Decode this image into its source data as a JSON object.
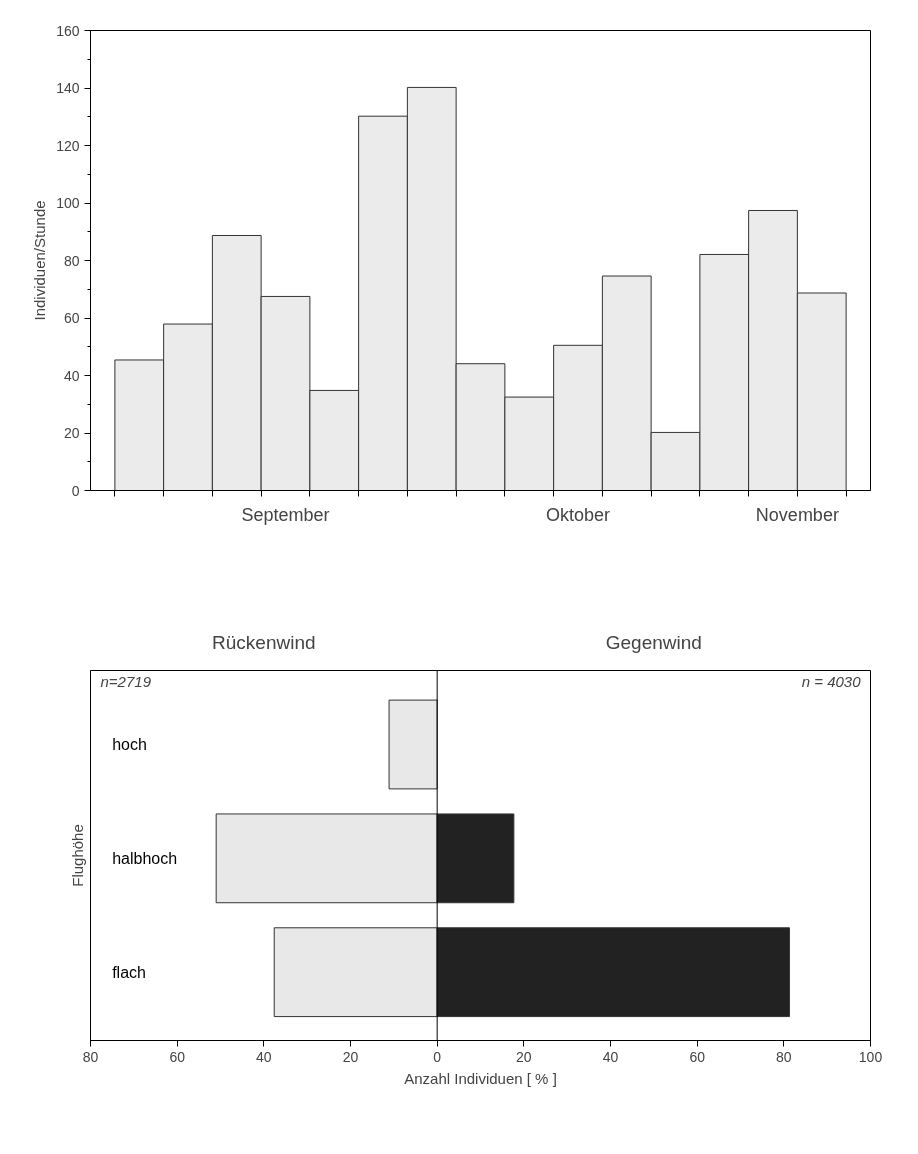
{
  "chart_data": [
    {
      "type": "bar",
      "categories": [
        null,
        null,
        null,
        null,
        null,
        null,
        null,
        null,
        null,
        null,
        null,
        null,
        null,
        null,
        null
      ],
      "values": [
        45.4,
        57.9,
        88.7,
        67.5,
        34.8,
        130.2,
        140.2,
        44.1,
        32.5,
        50.5,
        74.6,
        20.2,
        82.1,
        97.4,
        68.7
      ],
      "color": "#ebebeb",
      "ylim": [
        0,
        160
      ],
      "yticks": [
        0,
        20,
        40,
        60,
        80,
        100,
        120,
        140,
        160
      ],
      "ylabel": "Individuen/Stunde",
      "annotations": [
        "September",
        "Oktober",
        "November"
      ],
      "grid": false
    },
    {
      "type": "bar",
      "orientation": "horizontal",
      "categories": [
        "hoch",
        "halbhoch",
        "flach"
      ],
      "series": [
        {
          "color": "#e8e8e8",
          "values": [
            -11.1,
            -51,
            -37.6
          ]
        },
        {
          "color": "#222222",
          "values": [
            null,
            17.7,
            81.3
          ]
        }
      ],
      "xlim": [
        -80,
        100
      ],
      "xticks": [
        {
          "value": -80,
          "label": "80"
        },
        {
          "value": -60,
          "label": "60"
        },
        {
          "value": -40,
          "label": "40"
        },
        {
          "value": -20,
          "label": "20"
        },
        0,
        20,
        40,
        60,
        80,
        100
      ],
      "xlabel": "Anzahl Individuen [ % ]",
      "ylabel": "Flughöhe",
      "annotations": [
        "Rückenwind",
        "Gegenwind",
        "n=2719",
        "n = 4030"
      ],
      "ref_lines": [
        {
          "axis": "x",
          "value": 0
        }
      ],
      "grid": false,
      "stacked": true
    }
  ]
}
